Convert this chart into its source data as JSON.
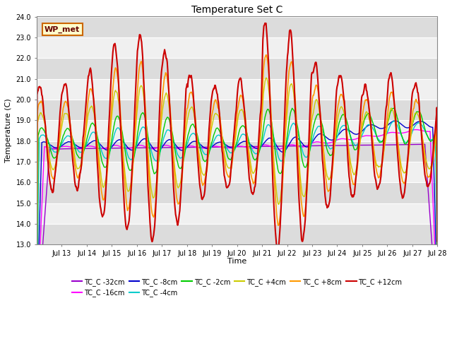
{
  "title": "Temperature Set C",
  "xlabel": "Time",
  "ylabel": "Temperature (C)",
  "ylim": [
    13.0,
    24.0
  ],
  "yticks": [
    13.0,
    14.0,
    15.0,
    16.0,
    17.0,
    18.0,
    19.0,
    20.0,
    21.0,
    22.0,
    23.0,
    24.0
  ],
  "x_labels": [
    "Jul 13",
    "Jul 14",
    "Jul 15",
    "Jul 16",
    "Jul 17",
    "Jul 18",
    "Jul 19",
    "Jul 20",
    "Jul 21",
    "Jul 22",
    "Jul 23",
    "Jul 24",
    "Jul 25",
    "Jul 26",
    "Jul 27",
    "Jul 28"
  ],
  "series": {
    "TC_C -32cm": {
      "color": "#9900cc",
      "lw": 1.0
    },
    "TC_C -16cm": {
      "color": "#ff00ff",
      "lw": 1.0
    },
    "TC_C -8cm": {
      "color": "#0000cc",
      "lw": 1.0
    },
    "TC_C -4cm": {
      "color": "#00cccc",
      "lw": 1.0
    },
    "TC_C -2cm": {
      "color": "#00cc00",
      "lw": 1.0
    },
    "TC_C +4cm": {
      "color": "#cccc00",
      "lw": 1.0
    },
    "TC_C +8cm": {
      "color": "#ff9900",
      "lw": 1.2
    },
    "TC_C +12cm": {
      "color": "#cc0000",
      "lw": 1.5
    }
  },
  "wp_met_box": {
    "text": "WP_met",
    "facecolor": "#ffffcc",
    "edgecolor": "#cc6600",
    "textcolor": "#660000",
    "fontsize": 8,
    "fontweight": "bold"
  },
  "plot_bg_light": "#f0f0f0",
  "plot_bg_dark": "#dcdcdc",
  "fig_bg": "#ffffff",
  "grid_color": "#ffffff",
  "grid_lw": 0.8
}
